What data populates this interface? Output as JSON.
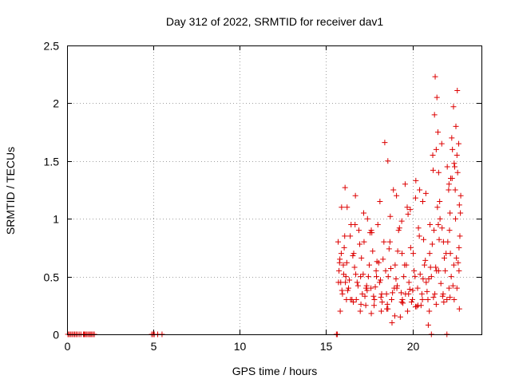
{
  "chart_data": {
    "type": "scatter",
    "title": "Day 312 of 2022, SRMTID for receiver dav1",
    "xlabel": "GPS time / hours",
    "ylabel": "SRMTID / TECUs",
    "xlim": [
      0,
      24
    ],
    "ylim": [
      0,
      2.5
    ],
    "xticks": [
      0,
      5,
      10,
      15,
      20
    ],
    "xtick_labels": [
      "0",
      "5",
      "10",
      "15",
      "20"
    ],
    "yticks": [
      0,
      0.5,
      1,
      1.5,
      2,
      2.5
    ],
    "ytick_labels": [
      "0",
      "0.5",
      "1",
      "1.5",
      "2",
      "2.5"
    ],
    "grid": true,
    "marker": "+",
    "color": "#dd0000",
    "series": [
      {
        "name": "SRMTID",
        "x": [
          0.05,
          0.12,
          0.2,
          0.28,
          0.36,
          0.44,
          0.52,
          0.6,
          0.7,
          0.8,
          0.95,
          1.0,
          1.05,
          1.12,
          1.2,
          1.28,
          1.35,
          1.42,
          1.5,
          1.58,
          4.9,
          4.98,
          5.05,
          5.25,
          5.5,
          15.6,
          15.65,
          21.1,
          22.0,
          15.7,
          15.75,
          15.8,
          15.85,
          15.9,
          15.95,
          16.0,
          16.05,
          16.1,
          16.15,
          16.2,
          16.3,
          16.4,
          16.5,
          16.6,
          16.7,
          16.8,
          16.9,
          17.0,
          17.1,
          17.2,
          17.3,
          17.4,
          17.5,
          17.6,
          17.7,
          17.8,
          17.9,
          18.0,
          18.1,
          18.2,
          18.3,
          18.4,
          18.5,
          18.6,
          18.7,
          18.8,
          18.9,
          19.0,
          19.1,
          19.2,
          19.3,
          19.4,
          19.5,
          19.6,
          19.7,
          19.8,
          19.9,
          20.0,
          20.1,
          20.2,
          20.3,
          20.4,
          20.5,
          20.6,
          20.7,
          20.8,
          20.9,
          21.0,
          21.1,
          21.2,
          21.3,
          21.4,
          21.5,
          21.6,
          21.7,
          21.8,
          21.9,
          22.0,
          22.1,
          22.2,
          22.3,
          22.4,
          22.5,
          22.6,
          22.7,
          22.8,
          15.72,
          15.88,
          16.02,
          16.25,
          16.45,
          16.65,
          16.85,
          17.05,
          17.25,
          17.45,
          17.65,
          17.85,
          18.05,
          18.25,
          18.45,
          18.65,
          18.85,
          19.05,
          19.25,
          19.45,
          19.65,
          19.85,
          20.05,
          20.25,
          20.45,
          20.65,
          20.85,
          21.05,
          21.25,
          21.45,
          21.65,
          21.85,
          22.05,
          22.25,
          22.45,
          22.65,
          22.75,
          15.78,
          15.92,
          16.08,
          16.35,
          16.55,
          16.75,
          16.95,
          17.15,
          17.35,
          17.55,
          17.75,
          17.95,
          18.15,
          18.35,
          18.55,
          18.75,
          18.95,
          19.15,
          19.35,
          19.55,
          19.75,
          19.95,
          20.15,
          20.35,
          20.55,
          20.75,
          20.95,
          21.15,
          21.35,
          21.55,
          21.75,
          21.95,
          22.15,
          22.35,
          22.55,
          22.7,
          16.22,
          16.68,
          17.18,
          17.62,
          18.12,
          18.58,
          18.72,
          19.08,
          19.38,
          19.58,
          19.88,
          20.18,
          20.42,
          20.78,
          21.02,
          21.18,
          21.28,
          21.32,
          21.38,
          21.42,
          21.48,
          21.52,
          21.58,
          21.72,
          22.02,
          22.12,
          22.18,
          22.22,
          22.28,
          22.32,
          22.38,
          22.42,
          22.48,
          22.52,
          22.58,
          22.62,
          22.68,
          22.72,
          22.78,
          15.82,
          16.12,
          16.42,
          16.72,
          17.02,
          17.32,
          17.62,
          17.92,
          18.22,
          18.52,
          18.82,
          19.12,
          19.42,
          19.72,
          20.02,
          20.32,
          20.62,
          20.92,
          21.22,
          21.52,
          21.82,
          22.12,
          22.42,
          22.72,
          16.18,
          16.58,
          16.98,
          17.38,
          17.78,
          18.18,
          18.58,
          18.98,
          19.38,
          19.78,
          20.18,
          20.58,
          20.98,
          21.38,
          21.78,
          22.18,
          22.58
        ],
        "y": [
          0,
          0,
          0,
          0,
          0,
          0,
          0,
          0,
          0,
          0,
          0,
          0,
          0,
          0,
          0,
          0,
          0,
          0,
          0,
          0,
          0,
          0,
          0,
          0,
          0,
          0,
          0,
          0,
          0,
          0.8,
          0.55,
          0.65,
          0.45,
          1.1,
          0.35,
          0.6,
          0.75,
          1.27,
          0.5,
          0.62,
          0.4,
          0.85,
          0.3,
          0.7,
          1.2,
          0.45,
          0.9,
          0.5,
          0.35,
          0.8,
          0.25,
          1.0,
          0.6,
          0.4,
          0.72,
          0.3,
          0.55,
          0.95,
          0.45,
          0.2,
          0.65,
          1.66,
          0.35,
          0.5,
          0.8,
          0.3,
          1.25,
          0.6,
          0.4,
          0.9,
          0.15,
          0.7,
          0.5,
          0.35,
          1.1,
          0.45,
          0.75,
          0.3,
          0.55,
          1.33,
          0.4,
          0.85,
          0.25,
          1.15,
          0.6,
          0.45,
          0.3,
          0.7,
          0.5,
          1.42,
          0.35,
          0.55,
          0.95,
          1.0,
          1.65,
          0.8,
          0.55,
          0.3,
          1.25,
          0.7,
          1.35,
          0.6,
          1.0,
          2.11,
          0.75,
          1.2,
          0.45,
          0.7,
          0.52,
          0.38,
          0.95,
          0.58,
          0.42,
          0.66,
          0.33,
          0.5,
          0.88,
          0.41,
          0.62,
          0.28,
          0.55,
          0.74,
          0.36,
          0.48,
          0.92,
          0.27,
          0.6,
          0.39,
          0.7,
          0.24,
          0.52,
          0.82,
          0.37,
          0.58,
          0.9,
          1.1,
          0.44,
          0.66,
          0.8,
          0.5,
          1.45,
          0.62,
          0.85,
          0.62,
          0.38,
          0.85,
          0.47,
          0.68,
          0.3,
          0.78,
          0.52,
          0.42,
          0.88,
          0.33,
          0.63,
          0.47,
          0.8,
          0.26,
          0.57,
          0.4,
          0.72,
          0.36,
          0.6,
          1.04,
          0.28,
          0.5,
          0.92,
          0.35,
          0.64,
          0.48,
          0.78,
          0.58,
          0.82,
          0.33,
          0.7,
          0.9,
          0.42,
          0.66,
          0.55,
          1.1,
          0.95,
          1.05,
          0.9,
          1.15,
          1.5,
          1.02,
          1.2,
          0.98,
          1.3,
          1.08,
          1.18,
          1.25,
          1.22,
          0.95,
          1.55,
          1.9,
          2.23,
          1.6,
          2.05,
          1.75,
          1.4,
          1.15,
          0.92,
          1.45,
          1.3,
          1.05,
          1.35,
          1.7,
          1.6,
          1.97,
          1.48,
          1.25,
          1.8,
          1.55,
          1.4,
          1.65,
          1.12,
          1.05,
          0.2,
          0.45,
          0.3,
          0.52,
          0.26,
          0.4,
          0.18,
          0.5,
          0.35,
          0.22,
          0.1,
          0.42,
          0.3,
          0.2,
          0.38,
          0.25,
          0.48,
          0.08,
          0.32,
          0.55,
          0.28,
          0.4,
          0.3,
          0.22,
          0.3,
          0.28,
          0.2,
          0.38,
          0.25,
          0.32,
          0.22,
          0.16,
          0.28,
          0.35,
          0.24,
          0.3,
          0.2,
          0.26,
          0.35,
          0.32,
          0.4
        ]
      }
    ]
  }
}
